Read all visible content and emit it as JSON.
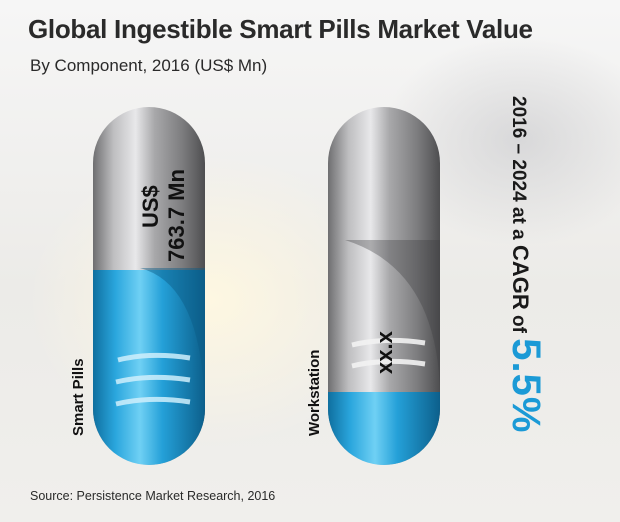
{
  "header": {
    "title": "Global Ingestible Smart Pills Market Value",
    "subtitle": "By Component, 2016 (US$ Mn)"
  },
  "source": "Source: Persistence Market Research, 2016",
  "cagr": {
    "prefix": "2016 – 2024 at a ",
    "label": "CAGR",
    "of": " of ",
    "value": "5.5%"
  },
  "chart_data": {
    "type": "bar",
    "title": "Global Ingestible Smart Pills Market Value",
    "subtitle": "By Component, 2016 (US$ Mn)",
    "categories": [
      "Smart Pills",
      "Workstation"
    ],
    "series": [
      {
        "values": [
          763.7,
          null
        ]
      }
    ],
    "value_labels": [
      [
        "US$",
        "763.7 Mn"
      ],
      [
        "xx.x"
      ]
    ],
    "colors": {
      "fill": "#1da0d8",
      "shell": "#9a9a9a"
    }
  }
}
